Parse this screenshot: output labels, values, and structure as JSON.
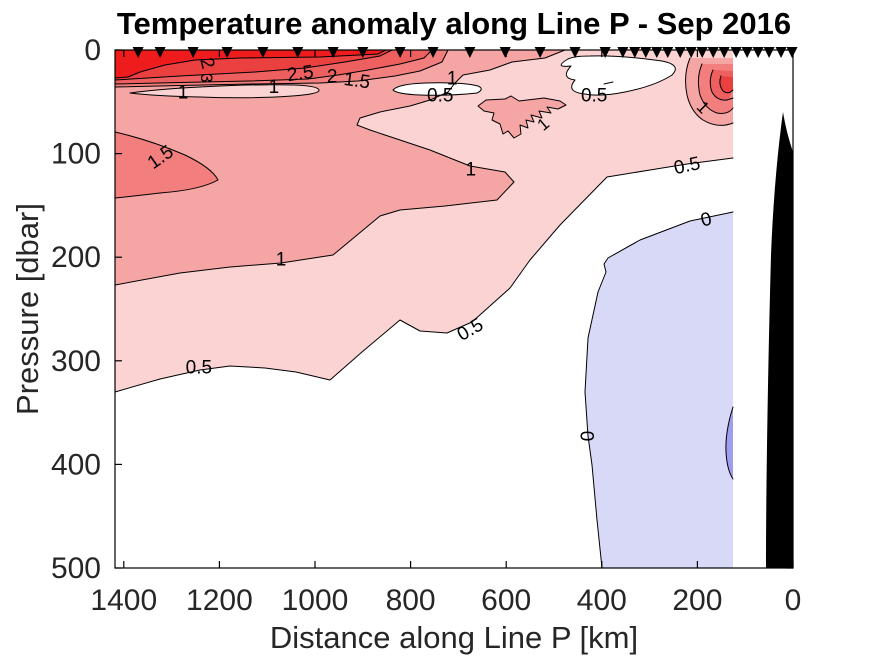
{
  "title": "Temperature anomaly along Line P - Sep 2016",
  "chart_data": {
    "type": "contour-filled",
    "title": "Temperature anomaly along Line P - Sep 2016",
    "xlabel": "Distance along Line P [km]",
    "ylabel": "Pressure [dbar]",
    "x_ticks": [
      1400,
      1200,
      1000,
      800,
      600,
      400,
      200,
      0
    ],
    "y_ticks": [
      0,
      100,
      200,
      300,
      400,
      500
    ],
    "x_axis_direction": "reversed (1400 km offshore at left, 0 km at coast on right)",
    "x_range_km": [
      1418,
      0
    ],
    "y_range_dbar": [
      0,
      500
    ],
    "contour_levels": [
      -0.5,
      0,
      0.5,
      1,
      1.5,
      2,
      2.5,
      3
    ],
    "fill_colors": {
      "base": "#ffffff",
      "-0.5": "#9e9ef0",
      "0": "#d8d8f7",
      "0.5": "#fbd3d3",
      "1": "#f6a5a5",
      "1.5": "#f27e7e",
      "2": "#ee5f5f",
      "2.5": "#ea4040",
      "3": "#ee1c1c",
      "land": "#000000"
    },
    "contour_labels": [
      {
        "value": "2",
        "km": 1224,
        "dbar": 12.5,
        "rot": 75,
        "size": 19
      },
      {
        "value": "3",
        "km": 1226,
        "dbar": 27,
        "rot": 90,
        "size": 17
      },
      {
        "value": "2.5",
        "km": 1031,
        "dbar": 22,
        "rot": -8,
        "size": 19
      },
      {
        "value": "2",
        "km": 964,
        "dbar": 25,
        "rot": 0,
        "size": 19
      },
      {
        "value": "1.5",
        "km": 912,
        "dbar": 29,
        "rot": 8,
        "size": 19
      },
      {
        "value": "1",
        "km": 1276,
        "dbar": 40.5,
        "rot": 0,
        "size": 19
      },
      {
        "value": "1",
        "km": 1086,
        "dbar": 35,
        "rot": 0,
        "size": 19
      },
      {
        "value": "1",
        "km": 713,
        "dbar": 27,
        "rot": 0,
        "size": 19
      },
      {
        "value": "0.5",
        "km": 738,
        "dbar": 43.4,
        "rot": 0,
        "size": 19
      },
      {
        "value": "0.5",
        "km": 416,
        "dbar": 43.4,
        "rot": 0,
        "size": 19
      },
      {
        "value": "1",
        "km": 188,
        "dbar": 55,
        "rot": 45,
        "size": 17
      },
      {
        "value": "1",
        "km": 523,
        "dbar": 71.4,
        "rot": -40,
        "size": 17
      },
      {
        "value": "1.5",
        "km": 1324,
        "dbar": 103,
        "rot": -35,
        "size": 19
      },
      {
        "value": "1",
        "km": 674,
        "dbar": 114.8,
        "rot": 0,
        "size": 19
      },
      {
        "value": "0.5",
        "km": 222,
        "dbar": 111,
        "rot": -12,
        "size": 19
      },
      {
        "value": "1",
        "km": 1071,
        "dbar": 201.7,
        "rot": 0,
        "size": 19
      },
      {
        "value": "0.5",
        "km": 676,
        "dbar": 269.3,
        "rot": -30,
        "size": 19
      },
      {
        "value": "0.5",
        "km": 1243,
        "dbar": 306,
        "rot": 0,
        "size": 19
      },
      {
        "value": "0",
        "km": 182,
        "dbar": 163.1,
        "rot": -15,
        "size": 19
      },
      {
        "value": "0",
        "km": 431,
        "dbar": 372.6,
        "rot": 90,
        "size": 19
      }
    ],
    "station_markers_km": [
      1370,
      1324,
      1255,
      1184,
      1109,
      1036,
      962,
      900,
      822,
      753,
      676,
      602,
      529,
      456,
      393,
      356,
      331,
      308,
      285,
      262,
      236,
      213,
      190,
      167,
      144,
      119,
      96,
      73,
      50,
      25,
      2
    ],
    "station_marker_symbol": "filled black downward triangle at surface",
    "positive_anomaly_region": "warm (red) anomalies up to >3 in upper 100 dbar offshore, 0.5-1.5 extending to ~300 dbar",
    "negative_anomaly_region": "cool (blue) anomaly below 0 between ~130-430 km from coast, 200-500 dbar",
    "land_mask": "black bathymetry wedge near coast (0-60 km, below ~60 dbar)"
  }
}
